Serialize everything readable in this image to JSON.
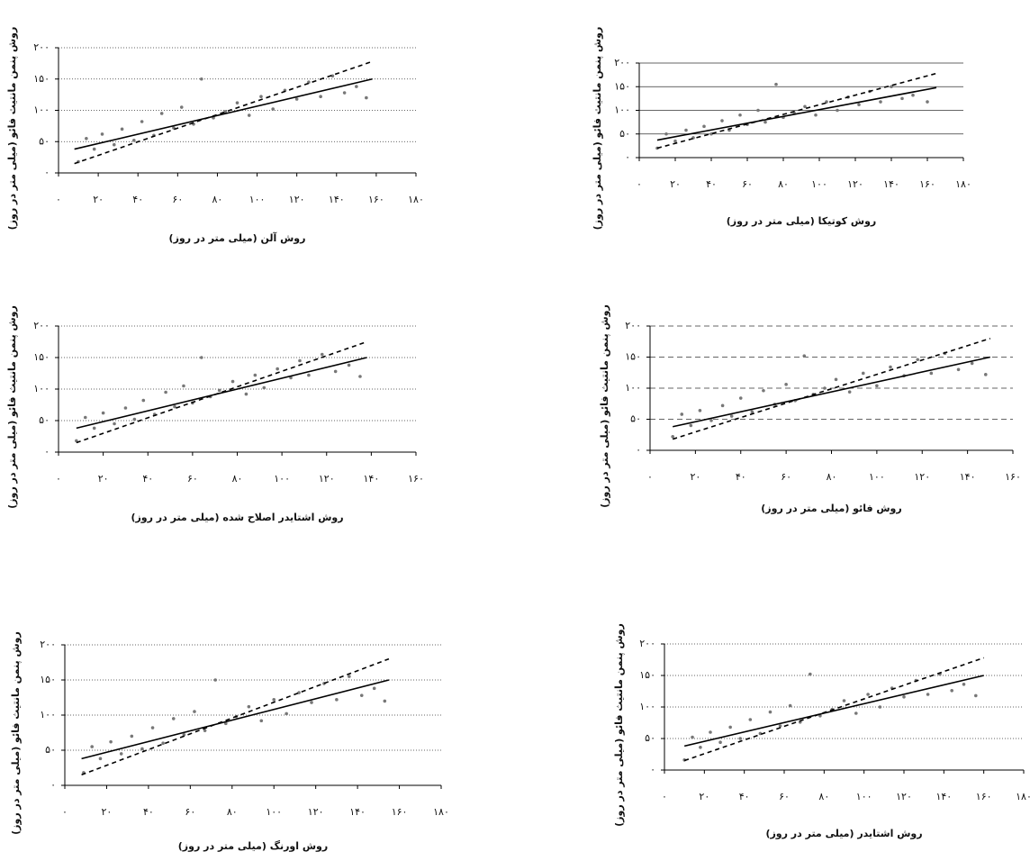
{
  "chart_data": [
    {
      "type": "scatter",
      "x_label": "روش آلن (میلی متر در روز)",
      "y_label": "روش پنمن مانتیث فائو (میلی متر در روز)",
      "xlim": [
        0,
        180
      ],
      "ylim": [
        0,
        200
      ],
      "grid": "dotted",
      "xticks": [
        {
          "value": 0,
          "label": "۰"
        },
        {
          "value": 20,
          "label": "۲۰"
        },
        {
          "value": 40,
          "label": "۴۰"
        },
        {
          "value": 60,
          "label": "۶۰"
        },
        {
          "value": 80,
          "label": "۸۰"
        },
        {
          "value": 100,
          "label": "۱۰۰"
        },
        {
          "value": 120,
          "label": "۱۲۰"
        },
        {
          "value": 140,
          "label": "۱۴۰"
        },
        {
          "value": 160,
          "label": "۱۶۰"
        },
        {
          "value": 180,
          "label": "۱۸۰"
        }
      ],
      "yticks": [
        {
          "value": 0,
          "label": "۰"
        },
        {
          "value": 50,
          "label": "۵۰"
        },
        {
          "value": 100,
          "label": "۱۰۰"
        },
        {
          "value": 150,
          "label": "۱۵۰"
        },
        {
          "value": 200,
          "label": "۲۰۰"
        }
      ],
      "series": [
        {
          "mode": "markers",
          "color": "#777777",
          "x": [
            10,
            14,
            18,
            22,
            28,
            32,
            38,
            42,
            48,
            52,
            58,
            62,
            68,
            72,
            78,
            84,
            90,
            96,
            102,
            108,
            114,
            120,
            126,
            132,
            138,
            144,
            150,
            155
          ],
          "values": [
            18,
            55,
            38,
            62,
            45,
            70,
            52,
            82,
            60,
            95,
            72,
            105,
            78,
            150,
            88,
            98,
            112,
            92,
            122,
            102,
            132,
            118,
            145,
            122,
            155,
            128,
            138,
            120
          ]
        },
        {
          "mode": "line",
          "dash": "solid",
          "color": "#000000",
          "x": [
            8,
            158
          ],
          "values": [
            38,
            150
          ]
        },
        {
          "mode": "line",
          "dash": "dashed",
          "color": "#000000",
          "x": [
            8,
            158
          ],
          "values": [
            15,
            178
          ]
        }
      ]
    },
    {
      "type": "scatter",
      "x_label": "روش کوتیکا (میلی متر در روز)",
      "y_label": "روش پنمن مانتیث فائو (میلی متر در روز)",
      "xlim": [
        0,
        180
      ],
      "ylim": [
        0,
        200
      ],
      "grid": "solid",
      "xticks": [
        {
          "value": 0,
          "label": "۰"
        },
        {
          "value": 20,
          "label": "۲۰"
        },
        {
          "value": 40,
          "label": "۴۰"
        },
        {
          "value": 60,
          "label": "۶۰"
        },
        {
          "value": 80,
          "label": "۸۰"
        },
        {
          "value": 100,
          "label": "۱۰۰"
        },
        {
          "value": 120,
          "label": "۱۲۰"
        },
        {
          "value": 140,
          "label": "۱۴۰"
        },
        {
          "value": 160,
          "label": "۱۶۰"
        },
        {
          "value": 180,
          "label": "۱۸۰"
        }
      ],
      "yticks": [
        {
          "value": 0,
          "label": "۰"
        },
        {
          "value": 50,
          "label": "۵۰"
        },
        {
          "value": 100,
          "label": "۱۰۰"
        },
        {
          "value": 150,
          "label": "۱۵۰"
        },
        {
          "value": 200,
          "label": "۲۰۰"
        }
      ],
      "series": [
        {
          "mode": "markers",
          "color": "#777777",
          "x": [
            10,
            15,
            20,
            26,
            30,
            36,
            40,
            46,
            50,
            56,
            60,
            66,
            70,
            76,
            80,
            86,
            92,
            98,
            104,
            110,
            116,
            122,
            128,
            134,
            140,
            146,
            152,
            160
          ],
          "values": [
            20,
            50,
            35,
            58,
            42,
            66,
            50,
            78,
            58,
            90,
            70,
            100,
            75,
            155,
            85,
            95,
            108,
            90,
            118,
            100,
            128,
            112,
            140,
            118,
            150,
            125,
            132,
            118
          ]
        },
        {
          "mode": "line",
          "dash": "solid",
          "color": "#000000",
          "x": [
            10,
            165
          ],
          "values": [
            37,
            148
          ]
        },
        {
          "mode": "line",
          "dash": "dashed",
          "color": "#000000",
          "x": [
            10,
            165
          ],
          "values": [
            20,
            178
          ]
        }
      ]
    },
    {
      "type": "scatter",
      "x_label": "روش اشتایدر اصلاح شده (میلی متر در روز)",
      "y_label": "روش پنمن مانتیث فائو (میلی متر در روز)",
      "xlim": [
        0,
        160
      ],
      "ylim": [
        0,
        200
      ],
      "grid": "dotted",
      "xticks": [
        {
          "value": 0,
          "label": "۰"
        },
        {
          "value": 20,
          "label": "۲۰"
        },
        {
          "value": 40,
          "label": "۴۰"
        },
        {
          "value": 60,
          "label": "۶۰"
        },
        {
          "value": 80,
          "label": "۸۰"
        },
        {
          "value": 100,
          "label": "۱۰۰"
        },
        {
          "value": 120,
          "label": "۱۲۰"
        },
        {
          "value": 140,
          "label": "۱۴۰"
        },
        {
          "value": 160,
          "label": "۱۶۰"
        }
      ],
      "yticks": [
        {
          "value": 0,
          "label": "۰"
        },
        {
          "value": 50,
          "label": "۵۰"
        },
        {
          "value": 100,
          "label": "۱۰۰"
        },
        {
          "value": 150,
          "label": "۱۵۰"
        },
        {
          "value": 200,
          "label": "۲۰۰"
        }
      ],
      "series": [
        {
          "mode": "markers",
          "color": "#777777",
          "x": [
            8,
            12,
            16,
            20,
            25,
            30,
            34,
            38,
            43,
            48,
            52,
            56,
            60,
            64,
            68,
            72,
            78,
            84,
            88,
            92,
            98,
            104,
            108,
            112,
            118,
            124,
            130,
            135
          ],
          "values": [
            18,
            55,
            38,
            62,
            45,
            70,
            52,
            82,
            60,
            95,
            72,
            105,
            78,
            150,
            88,
            98,
            112,
            92,
            122,
            102,
            132,
            118,
            145,
            122,
            155,
            128,
            138,
            120
          ]
        },
        {
          "mode": "line",
          "dash": "solid",
          "color": "#000000",
          "x": [
            8,
            138
          ],
          "values": [
            38,
            150
          ]
        },
        {
          "mode": "line",
          "dash": "dashed",
          "color": "#000000",
          "x": [
            8,
            138
          ],
          "values": [
            15,
            175
          ]
        }
      ]
    },
    {
      "type": "scatter",
      "x_label": "روش فائو (میلی متر در روز)",
      "y_label": "روش پنمن مانتیث فائو (میلی متر در روز)",
      "xlim": [
        0,
        160
      ],
      "ylim": [
        0,
        200
      ],
      "grid": "dashed",
      "xticks": [
        {
          "value": 0,
          "label": "۰"
        },
        {
          "value": 20,
          "label": "۲۰"
        },
        {
          "value": 40,
          "label": "۴۰"
        },
        {
          "value": 60,
          "label": "۶۰"
        },
        {
          "value": 80,
          "label": "۸۰"
        },
        {
          "value": 100,
          "label": "۱۰۰"
        },
        {
          "value": 120,
          "label": "۱۲۰"
        },
        {
          "value": 140,
          "label": "۱۴۰"
        },
        {
          "value": 160,
          "label": "۱۶۰"
        }
      ],
      "yticks": [
        {
          "value": 0,
          "label": "۰"
        },
        {
          "value": 50,
          "label": "۵۰"
        },
        {
          "value": 100,
          "label": "۱۰۰"
        },
        {
          "value": 150,
          "label": "۱۵۰"
        },
        {
          "value": 200,
          "label": "۲۰۰"
        }
      ],
      "series": [
        {
          "mode": "markers",
          "color": "#777777",
          "x": [
            10,
            14,
            18,
            22,
            27,
            32,
            36,
            40,
            45,
            50,
            55,
            60,
            64,
            68,
            72,
            77,
            82,
            88,
            94,
            100,
            106,
            112,
            118,
            124,
            130,
            136,
            142,
            148
          ],
          "values": [
            22,
            58,
            40,
            64,
            48,
            72,
            55,
            84,
            62,
            96,
            74,
            106,
            80,
            152,
            90,
            100,
            114,
            94,
            124,
            104,
            134,
            120,
            146,
            124,
            156,
            130,
            140,
            122
          ]
        },
        {
          "mode": "line",
          "dash": "solid",
          "color": "#000000",
          "x": [
            10,
            150
          ],
          "values": [
            38,
            150
          ]
        },
        {
          "mode": "line",
          "dash": "dashed",
          "color": "#000000",
          "x": [
            10,
            150
          ],
          "values": [
            18,
            180
          ]
        }
      ]
    },
    {
      "type": "scatter",
      "x_label": "روش اورنگ (میلی متر در روز)",
      "y_label": "روش پنمن مانتیث فائو (میلی متر در روز)",
      "xlim": [
        0,
        180
      ],
      "ylim": [
        0,
        200
      ],
      "grid": "dotted",
      "xticks": [
        {
          "value": 0,
          "label": "۰"
        },
        {
          "value": 20,
          "label": "۲۰"
        },
        {
          "value": 40,
          "label": "۴۰"
        },
        {
          "value": 60,
          "label": "۶۰"
        },
        {
          "value": 80,
          "label": "۸۰"
        },
        {
          "value": 100,
          "label": "۱۰۰"
        },
        {
          "value": 120,
          "label": "۱۲۰"
        },
        {
          "value": 140,
          "label": "۱۴۰"
        },
        {
          "value": 160,
          "label": "۱۶۰"
        },
        {
          "value": 180,
          "label": "۱۸۰"
        }
      ],
      "yticks": [
        {
          "value": 0,
          "label": "۰"
        },
        {
          "value": 50,
          "label": "۵۰"
        },
        {
          "value": 100,
          "label": "۱۰۰"
        },
        {
          "value": 150,
          "label": "۱۵۰"
        },
        {
          "value": 200,
          "label": "۲۰۰"
        }
      ],
      "series": [
        {
          "mode": "markers",
          "color": "#777777",
          "x": [
            9,
            13,
            17,
            22,
            27,
            32,
            37,
            42,
            47,
            52,
            57,
            62,
            67,
            72,
            77,
            82,
            88,
            94,
            100,
            106,
            112,
            118,
            124,
            130,
            136,
            142,
            148,
            153
          ],
          "values": [
            18,
            55,
            38,
            62,
            45,
            70,
            52,
            82,
            60,
            95,
            72,
            105,
            78,
            150,
            88,
            98,
            112,
            92,
            122,
            102,
            132,
            118,
            145,
            122,
            155,
            128,
            138,
            120
          ]
        },
        {
          "mode": "line",
          "dash": "solid",
          "color": "#000000",
          "x": [
            8,
            155
          ],
          "values": [
            38,
            150
          ]
        },
        {
          "mode": "line",
          "dash": "dashed",
          "color": "#000000",
          "x": [
            8,
            155
          ],
          "values": [
            15,
            180
          ]
        }
      ]
    },
    {
      "type": "scatter",
      "x_label": "روش اشتایدر (میلی متر در روز)",
      "y_label": "روش پنمن مانتیث فائو (میلی متر در روز)",
      "xlim": [
        0,
        180
      ],
      "ylim": [
        0,
        200
      ],
      "grid": "dotted",
      "xticks": [
        {
          "value": 0,
          "label": "۰"
        },
        {
          "value": 20,
          "label": "۲۰"
        },
        {
          "value": 40,
          "label": "۴۰"
        },
        {
          "value": 60,
          "label": "۶۰"
        },
        {
          "value": 80,
          "label": "۸۰"
        },
        {
          "value": 100,
          "label": "۱۰۰"
        },
        {
          "value": 120,
          "label": "۱۲۰"
        },
        {
          "value": 140,
          "label": "۱۴۰"
        },
        {
          "value": 160,
          "label": "۱۶۰"
        },
        {
          "value": 180,
          "label": "۱۸۰"
        }
      ],
      "yticks": [
        {
          "value": 0,
          "label": "۰"
        },
        {
          "value": 50,
          "label": "۵۰"
        },
        {
          "value": 100,
          "label": "۱۰۰"
        },
        {
          "value": 150,
          "label": "۱۵۰"
        },
        {
          "value": 200,
          "label": "۲۰۰"
        }
      ],
      "series": [
        {
          "mode": "markers",
          "color": "#777777",
          "x": [
            10,
            14,
            18,
            23,
            28,
            33,
            38,
            43,
            48,
            53,
            58,
            63,
            68,
            73,
            78,
            84,
            90,
            96,
            102,
            108,
            114,
            120,
            126,
            132,
            138,
            144,
            150,
            156
          ],
          "values": [
            16,
            52,
            36,
            60,
            44,
            68,
            50,
            80,
            58,
            92,
            70,
            102,
            76,
            152,
            86,
            96,
            110,
            90,
            120,
            100,
            130,
            116,
            142,
            120,
            152,
            126,
            136,
            118
          ]
        },
        {
          "mode": "line",
          "dash": "solid",
          "color": "#000000",
          "x": [
            10,
            160
          ],
          "values": [
            38,
            150
          ]
        },
        {
          "mode": "line",
          "dash": "dashed",
          "color": "#000000",
          "x": [
            10,
            160
          ],
          "values": [
            15,
            178
          ]
        }
      ]
    }
  ]
}
